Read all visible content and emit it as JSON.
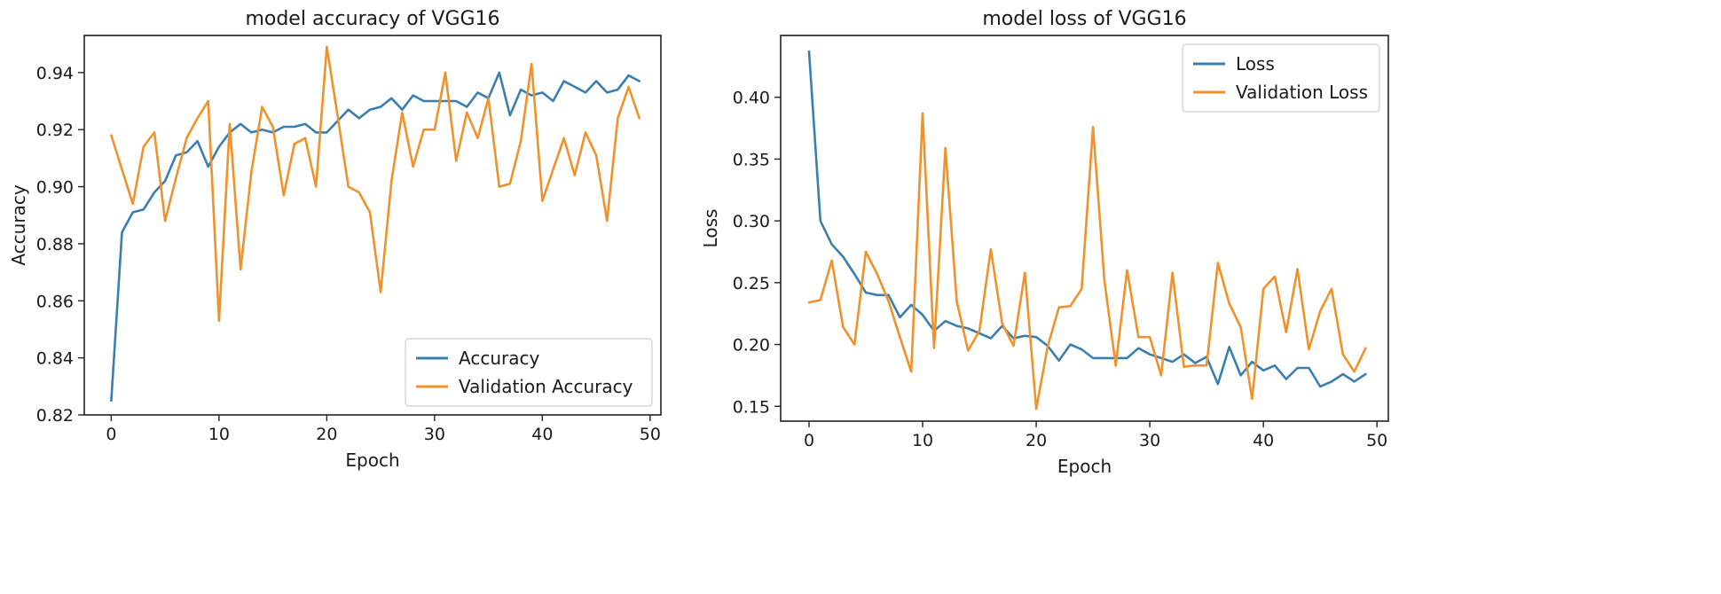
{
  "chart_data": [
    {
      "type": "line",
      "title": "model accuracy of VGG16",
      "xlabel": "Epoch",
      "ylabel": "Accuracy",
      "xlim": [
        -2.5,
        51
      ],
      "ylim": [
        0.82,
        0.953
      ],
      "xticks": [
        0,
        10,
        20,
        30,
        40,
        50
      ],
      "yticks": [
        0.82,
        0.84,
        0.86,
        0.88,
        0.9,
        0.92,
        0.94
      ],
      "ytick_labels": [
        "0.82",
        "0.84",
        "0.86",
        "0.88",
        "0.90",
        "0.92",
        "0.94"
      ],
      "legend_position": "lower-right",
      "grid": false,
      "x": [
        0,
        1,
        2,
        3,
        4,
        5,
        6,
        7,
        8,
        9,
        10,
        11,
        12,
        13,
        14,
        15,
        16,
        17,
        18,
        19,
        20,
        21,
        22,
        23,
        24,
        25,
        26,
        27,
        28,
        29,
        30,
        31,
        32,
        33,
        34,
        35,
        36,
        37,
        38,
        39,
        40,
        41,
        42,
        43,
        44,
        45,
        46,
        47,
        48,
        49
      ],
      "series": [
        {
          "name": "Accuracy",
          "color": "#3a7fb0",
          "values": [
            0.825,
            0.884,
            0.891,
            0.892,
            0.898,
            0.902,
            0.911,
            0.912,
            0.916,
            0.907,
            0.914,
            0.919,
            0.922,
            0.919,
            0.92,
            0.919,
            0.921,
            0.921,
            0.922,
            0.919,
            0.919,
            0.923,
            0.927,
            0.924,
            0.927,
            0.928,
            0.931,
            0.927,
            0.932,
            0.93,
            0.93,
            0.93,
            0.93,
            0.928,
            0.933,
            0.931,
            0.94,
            0.925,
            0.934,
            0.932,
            0.933,
            0.93,
            0.937,
            0.935,
            0.933,
            0.937,
            0.933,
            0.934,
            0.939,
            0.937
          ]
        },
        {
          "name": "Validation Accuracy",
          "color": "#f0922b",
          "values": [
            0.918,
            0.906,
            0.894,
            0.914,
            0.919,
            0.888,
            0.903,
            0.917,
            0.924,
            0.93,
            0.853,
            0.922,
            0.871,
            0.905,
            0.928,
            0.921,
            0.897,
            0.915,
            0.917,
            0.9,
            0.949,
            0.925,
            0.9,
            0.898,
            0.891,
            0.863,
            0.902,
            0.926,
            0.907,
            0.92,
            0.92,
            0.94,
            0.909,
            0.926,
            0.917,
            0.931,
            0.9,
            0.901,
            0.916,
            0.943,
            0.895,
            0.906,
            0.917,
            0.904,
            0.919,
            0.911,
            0.888,
            0.924,
            0.935,
            0.924
          ]
        }
      ]
    },
    {
      "type": "line",
      "title": "model loss of VGG16",
      "xlabel": "Epoch",
      "ylabel": "Loss",
      "xlim": [
        -2.5,
        51
      ],
      "ylim": [
        0.138,
        0.45
      ],
      "xticks": [
        0,
        10,
        20,
        30,
        40,
        50
      ],
      "yticks": [
        0.15,
        0.2,
        0.25,
        0.3,
        0.35,
        0.4
      ],
      "ytick_labels": [
        "0.15",
        "0.20",
        "0.25",
        "0.30",
        "0.35",
        "0.40"
      ],
      "legend_position": "upper-right",
      "grid": false,
      "x": [
        0,
        1,
        2,
        3,
        4,
        5,
        6,
        7,
        8,
        9,
        10,
        11,
        12,
        13,
        14,
        15,
        16,
        17,
        18,
        19,
        20,
        21,
        22,
        23,
        24,
        25,
        26,
        27,
        28,
        29,
        30,
        31,
        32,
        33,
        34,
        35,
        36,
        37,
        38,
        39,
        40,
        41,
        42,
        43,
        44,
        45,
        46,
        47,
        48,
        49
      ],
      "series": [
        {
          "name": "Loss",
          "color": "#3a7fb0",
          "values": [
            0.437,
            0.3,
            0.281,
            0.271,
            0.257,
            0.242,
            0.24,
            0.24,
            0.222,
            0.232,
            0.224,
            0.211,
            0.219,
            0.215,
            0.213,
            0.209,
            0.205,
            0.215,
            0.205,
            0.207,
            0.206,
            0.199,
            0.187,
            0.2,
            0.196,
            0.189,
            0.189,
            0.189,
            0.189,
            0.197,
            0.192,
            0.189,
            0.186,
            0.192,
            0.185,
            0.19,
            0.168,
            0.198,
            0.175,
            0.186,
            0.179,
            0.183,
            0.172,
            0.181,
            0.181,
            0.166,
            0.17,
            0.176,
            0.17,
            0.176
          ]
        },
        {
          "name": "Validation Loss",
          "color": "#f0922b",
          "values": [
            0.234,
            0.236,
            0.268,
            0.214,
            0.2,
            0.275,
            0.257,
            0.235,
            0.206,
            0.178,
            0.387,
            0.197,
            0.359,
            0.235,
            0.195,
            0.211,
            0.277,
            0.217,
            0.199,
            0.258,
            0.148,
            0.198,
            0.23,
            0.231,
            0.245,
            0.376,
            0.252,
            0.183,
            0.26,
            0.206,
            0.206,
            0.175,
            0.258,
            0.182,
            0.183,
            0.183,
            0.266,
            0.233,
            0.214,
            0.156,
            0.245,
            0.255,
            0.21,
            0.261,
            0.196,
            0.227,
            0.245,
            0.192,
            0.178,
            0.197
          ]
        }
      ]
    }
  ]
}
